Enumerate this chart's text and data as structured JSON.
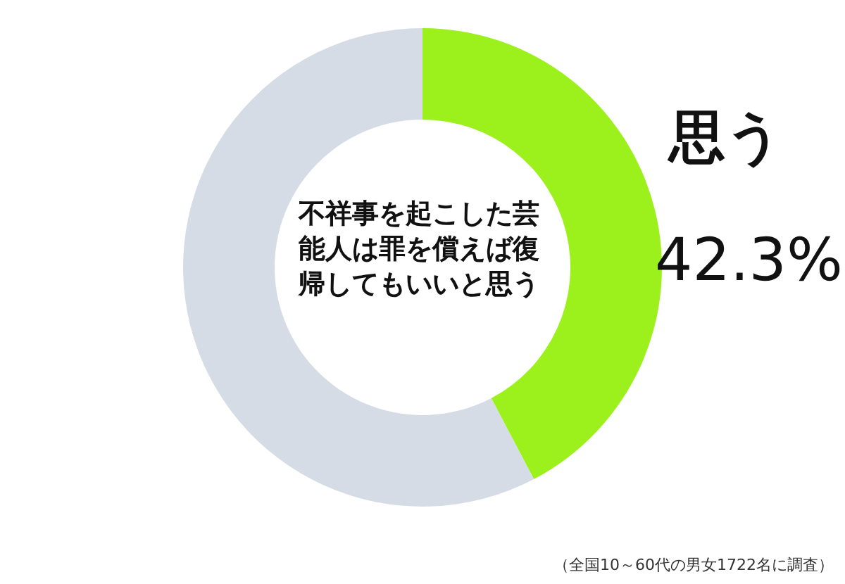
{
  "chart_data": {
    "type": "donut",
    "title": "不祥事を起こした芸能人は罪を償えば復帰してもいいと思う",
    "categories": [
      "思う",
      null
    ],
    "values": [
      42.3,
      57.7
    ],
    "value_labels": [
      "42.3%",
      null
    ],
    "colors": [
      "#9cf01c",
      "#d6dce6"
    ],
    "annotations": [
      "（全国10～60代の男女1722名に調査）"
    ]
  }
}
